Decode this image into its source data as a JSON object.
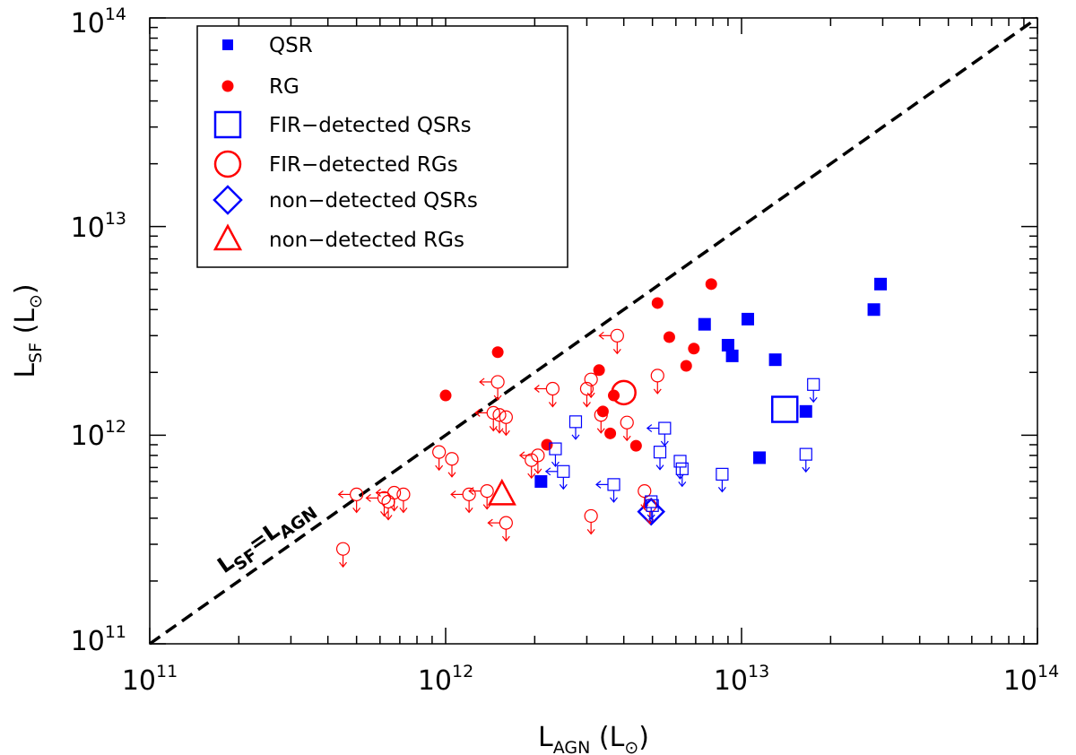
{
  "chart_data": {
    "type": "scatter",
    "title": "",
    "xscale": "log",
    "yscale": "log",
    "xlim": [
      100000000000.0,
      100000000000000.0
    ],
    "ylim": [
      100000000000.0,
      100000000000000.0
    ],
    "xticks": [
      {
        "base": "10",
        "exp": "11"
      },
      {
        "base": "10",
        "exp": "12"
      },
      {
        "base": "10",
        "exp": "13"
      },
      {
        "base": "10",
        "exp": "14"
      }
    ],
    "yticks": [
      {
        "base": "10",
        "exp": "11"
      },
      {
        "base": "10",
        "exp": "12"
      },
      {
        "base": "10",
        "exp": "13"
      },
      {
        "base": "10",
        "exp": "14"
      }
    ],
    "xlabel": {
      "main": "L",
      "sub": "AGN",
      "unit": " (L",
      "sun": "⊙",
      "close": ")"
    },
    "ylabel": {
      "main": "L",
      "sub": "SF",
      "unit": " (L",
      "sun": "⊙",
      "close": ")"
    },
    "annotation": {
      "text_a": "L",
      "sub_a": "SF",
      "eq": "=L",
      "sub_b": "AGN"
    },
    "legend": [
      {
        "label": "QSR",
        "marker": "filled-square",
        "color": "#0000ff"
      },
      {
        "label": "RG",
        "marker": "filled-circle",
        "color": "#ff0000"
      },
      {
        "label": "FIR−detected QSRs",
        "marker": "open-square",
        "color": "#0000ff"
      },
      {
        "label": "FIR−detected RGs",
        "marker": "open-circle",
        "color": "#ff0000"
      },
      {
        "label": "non−detected QSRs",
        "marker": "open-diamond",
        "color": "#0000ff"
      },
      {
        "label": "non−detected RGs",
        "marker": "open-triangle",
        "color": "#ff0000"
      }
    ],
    "reference_line": {
      "label": "LSF=LAGN",
      "from": [
        100000000000.0,
        100000000000.0
      ],
      "to": [
        100000000000000.0,
        100000000000000.0
      ],
      "style": "dashed"
    },
    "series": [
      {
        "name": "QSR",
        "marker": "filled-square",
        "color": "#0000ff",
        "points": [
          [
            2100000000000.0,
            600000000000.0
          ],
          [
            7500000000000.0,
            3400000000000.0
          ],
          [
            9000000000000.0,
            2700000000000.0
          ],
          [
            9300000000000.0,
            2400000000000.0
          ],
          [
            10500000000000.0,
            3600000000000.0
          ],
          [
            11500000000000.0,
            780000000000.0
          ],
          [
            13000000000000.0,
            2300000000000.0
          ],
          [
            16500000000000.0,
            1300000000000.0
          ],
          [
            28000000000000.0,
            4000000000000.0
          ],
          [
            29500000000000.0,
            5300000000000.0
          ]
        ]
      },
      {
        "name": "RG",
        "marker": "filled-circle",
        "color": "#ff0000",
        "points": [
          [
            1000000000000.0,
            1550000000000.0
          ],
          [
            1500000000000.0,
            2500000000000.0
          ],
          [
            2200000000000.0,
            900000000000.0
          ],
          [
            3300000000000.0,
            2050000000000.0
          ],
          [
            3400000000000.0,
            1300000000000.0
          ],
          [
            3600000000000.0,
            1020000000000.0
          ],
          [
            3700000000000.0,
            1550000000000.0
          ],
          [
            4400000000000.0,
            890000000000.0
          ],
          [
            5200000000000.0,
            4300000000000.0
          ],
          [
            5700000000000.0,
            2950000000000.0
          ],
          [
            6500000000000.0,
            2150000000000.0
          ],
          [
            6900000000000.0,
            2600000000000.0
          ],
          [
            7900000000000.0,
            5300000000000.0
          ]
        ]
      },
      {
        "name": "FIR-detected QSRs",
        "marker": "open-square-large",
        "color": "#0000ff",
        "points": [
          [
            14000000000000.0,
            1330000000000.0
          ]
        ]
      },
      {
        "name": "FIR-detected RGs",
        "marker": "open-circle-large",
        "color": "#ff0000",
        "points": [
          [
            4000000000000.0,
            1600000000000.0
          ]
        ]
      },
      {
        "name": "non-detected QSRs",
        "marker": "open-diamond-large",
        "color": "#0000ff",
        "points": [
          [
            4950000000000.0,
            430000000000.0
          ]
        ]
      },
      {
        "name": "non-detected RGs",
        "marker": "open-triangle-large",
        "color": "#ff0000",
        "points": [
          [
            1550000000000.0,
            520000000000.0
          ]
        ]
      },
      {
        "name": "RG upper limits",
        "marker": "open-circle-limit",
        "color": "#ff0000",
        "points": [
          [
            450000000000.0,
            285000000000.0,
            0
          ],
          [
            500000000000.0,
            520000000000.0,
            1
          ],
          [
            620000000000.0,
            500000000000.0,
            1
          ],
          [
            640000000000.0,
            480000000000.0,
            0
          ],
          [
            670000000000.0,
            530000000000.0,
            1
          ],
          [
            720000000000.0,
            520000000000.0,
            0
          ],
          [
            950000000000.0,
            830000000000.0,
            0
          ],
          [
            1050000000000.0,
            770000000000.0,
            0
          ],
          [
            1200000000000.0,
            520000000000.0,
            1
          ],
          [
            1380000000000.0,
            540000000000.0,
            1
          ],
          [
            1500000000000.0,
            1800000000000.0,
            1
          ],
          [
            1450000000000.0,
            1280000000000.0,
            1
          ],
          [
            1520000000000.0,
            1250000000000.0,
            0
          ],
          [
            1600000000000.0,
            1220000000000.0,
            0
          ],
          [
            1600000000000.0,
            380000000000.0,
            1
          ],
          [
            1950000000000.0,
            760000000000.0,
            0
          ],
          [
            2050000000000.0,
            800000000000.0,
            1
          ],
          [
            2300000000000.0,
            1670000000000.0,
            1
          ],
          [
            3000000000000.0,
            1670000000000.0,
            0
          ],
          [
            3100000000000.0,
            1850000000000.0,
            0
          ],
          [
            3100000000000.0,
            410000000000.0,
            0
          ],
          [
            3350000000000.0,
            1250000000000.0,
            0
          ],
          [
            3800000000000.0,
            3000000000000.0,
            1
          ],
          [
            4100000000000.0,
            1150000000000.0,
            0
          ],
          [
            4700000000000.0,
            540000000000.0,
            0
          ],
          [
            4900000000000.0,
            460000000000.0,
            0
          ],
          [
            5200000000000.0,
            1930000000000.0,
            0
          ]
        ]
      },
      {
        "name": "QSR upper limits",
        "marker": "open-square-limit",
        "color": "#0000ff",
        "points": [
          [
            2350000000000.0,
            860000000000.0,
            0
          ],
          [
            2500000000000.0,
            670000000000.0,
            1
          ],
          [
            2750000000000.0,
            1160000000000.0,
            0
          ],
          [
            3700000000000.0,
            580000000000.0,
            1
          ],
          [
            4950000000000.0,
            480000000000.0,
            0
          ],
          [
            5000000000000.0,
            460000000000.0,
            0
          ],
          [
            5300000000000.0,
            830000000000.0,
            0
          ],
          [
            5500000000000.0,
            1080000000000.0,
            1
          ],
          [
            6200000000000.0,
            750000000000.0,
            0
          ],
          [
            6300000000000.0,
            690000000000.0,
            0
          ],
          [
            8600000000000.0,
            650000000000.0,
            0
          ],
          [
            16500000000000.0,
            810000000000.0,
            0
          ],
          [
            17500000000000.0,
            1750000000000.0,
            0
          ]
        ]
      }
    ]
  }
}
